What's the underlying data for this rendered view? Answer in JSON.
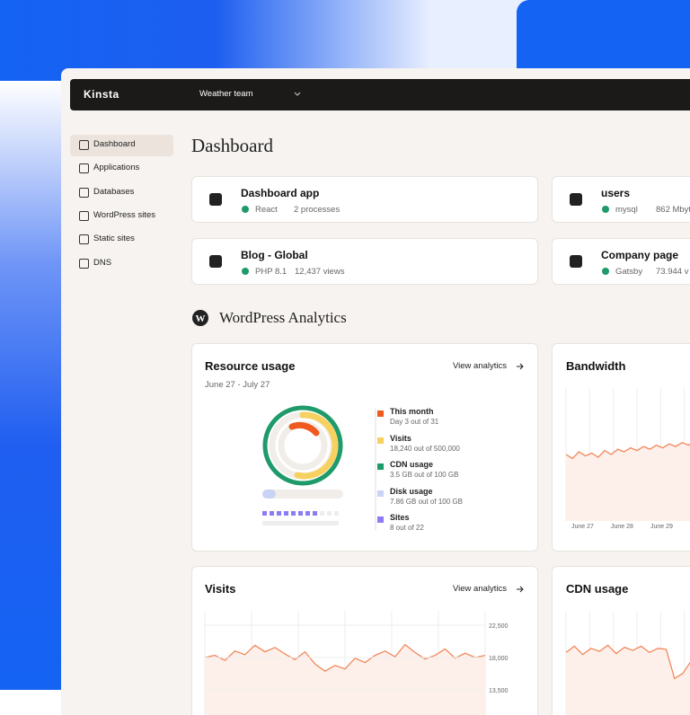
{
  "header": {
    "logo": "Kinsta",
    "team": "Weather team"
  },
  "sidebar": {
    "items": [
      "Dashboard",
      "Applications",
      "Databases",
      "WordPress sites",
      "Static sites",
      "DNS"
    ]
  },
  "page_title": "Dashboard",
  "sites": [
    {
      "name": "Dashboard app",
      "status": "React",
      "detail": "2 processes"
    },
    {
      "name": "users",
      "status": "mysql",
      "detail": "862 Mbyt"
    },
    {
      "name": "Blog - Global",
      "status": "PHP 8.1",
      "detail": "12,437 views"
    },
    {
      "name": "Company page",
      "status": "Gatsby",
      "detail": "73.944 v"
    }
  ],
  "section_title": "WordPress Analytics",
  "resource_usage": {
    "title": "Resource usage",
    "link": "View analytics",
    "date_range": "June 27 - July 27",
    "legend": [
      {
        "label": "This month",
        "detail": "Day 3 out of 31",
        "color": "#ef5a1e"
      },
      {
        "label": "Visits",
        "detail": "18,240 out of 500,000",
        "color": "#f7d15f"
      },
      {
        "label": "CDN usage",
        "detail": "3.5 GB out of 100 GB",
        "color": "#1f9a6a"
      },
      {
        "label": "Disk usage",
        "detail": "7.86 GB out of 100 GB",
        "color": "#c9d4f5"
      },
      {
        "label": "Sites",
        "detail": "8 out of 22",
        "color": "#8b7cf6"
      }
    ]
  },
  "bandwidth": {
    "title": "Bandwidth",
    "xticks": [
      "June 27",
      "June 28",
      "June 29"
    ],
    "ylim": [
      0,
      100
    ],
    "values": [
      50,
      47,
      52,
      49,
      51,
      48,
      53,
      50,
      54,
      52,
      55,
      53,
      56,
      54,
      57,
      55,
      58,
      56,
      59,
      57,
      60,
      58,
      62
    ]
  },
  "visits": {
    "title": "Visits",
    "link": "View analytics",
    "ylim": [
      10000,
      24500
    ],
    "yticks": [
      {
        "value": 22500,
        "label": "22,500"
      },
      {
        "value": 18000,
        "label": "18,000"
      },
      {
        "value": 13500,
        "label": "13,500"
      }
    ],
    "values": [
      18000,
      18300,
      17600,
      18900,
      18400,
      19700,
      18800,
      19400,
      18500,
      17700,
      18800,
      17100,
      16100,
      16900,
      16400,
      17900,
      17300,
      18300,
      18900,
      18100,
      19800,
      18700,
      17800,
      18300,
      19200,
      17900,
      18600,
      18000,
      18300
    ]
  },
  "cdn_usage": {
    "title": "CDN usage",
    "ylim": [
      0,
      100
    ],
    "values": [
      60,
      66,
      58,
      64,
      61,
      67,
      59,
      65,
      62,
      66,
      60,
      64,
      63,
      35,
      40,
      52,
      58,
      55
    ]
  }
}
